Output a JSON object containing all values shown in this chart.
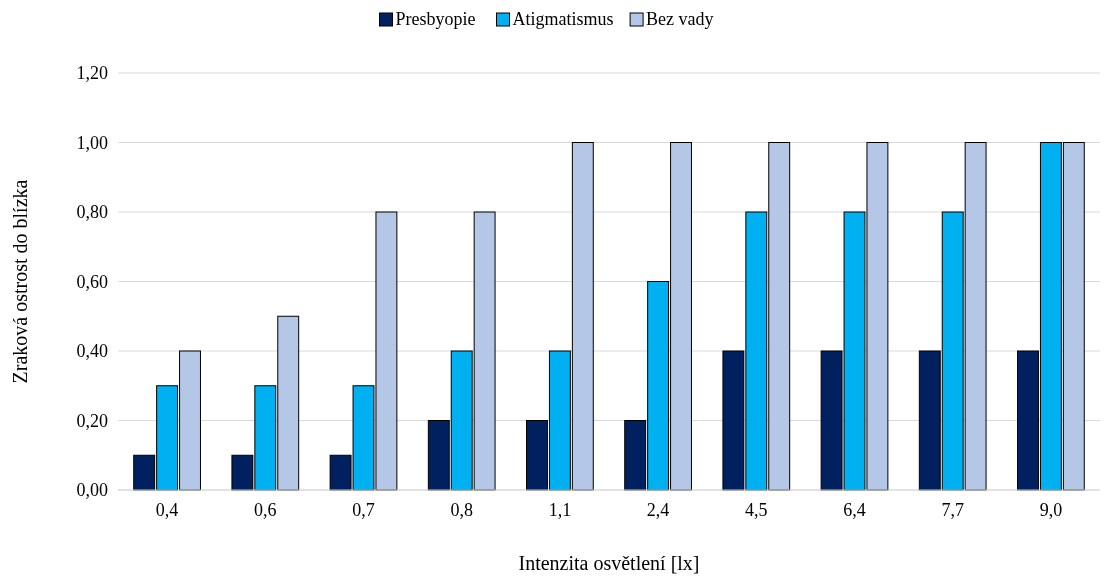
{
  "chart_data": {
    "type": "bar",
    "xlabel": "Intenzita osvětlení [lx]",
    "ylabel": "Zraková ostrost do blízka",
    "categories": [
      "0,4",
      "0,6",
      "0,7",
      "0,8",
      "1,1",
      "2,4",
      "4,5",
      "6,4",
      "7,7",
      "9,0"
    ],
    "series": [
      {
        "name": "Presbyopie",
        "color": "#002060",
        "values": [
          0.1,
          0.1,
          0.1,
          0.2,
          0.2,
          0.2,
          0.4,
          0.4,
          0.4,
          0.4
        ]
      },
      {
        "name": "Atigmatismus",
        "color": "#00b0f0",
        "values": [
          0.3,
          0.3,
          0.3,
          0.4,
          0.4,
          0.6,
          0.8,
          0.8,
          0.8,
          1.0
        ]
      },
      {
        "name": "Bez vady",
        "color": "#b4c7e7",
        "values": [
          0.4,
          0.5,
          0.8,
          0.8,
          1.0,
          1.0,
          1.0,
          1.0,
          1.0,
          1.0
        ]
      }
    ],
    "ylim": [
      0,
      1.2
    ],
    "yticks": [
      {
        "value": 0,
        "label": "0,00"
      },
      {
        "value": 0.2,
        "label": "0,20"
      },
      {
        "value": 0.4,
        "label": "0,40"
      },
      {
        "value": 0.6,
        "label": "0,60"
      },
      {
        "value": 0.8,
        "label": "0,80"
      },
      {
        "value": 1,
        "label": "1,00"
      },
      {
        "value": 1.2,
        "label": "1,20"
      }
    ],
    "grid": "y",
    "legend": "top"
  }
}
